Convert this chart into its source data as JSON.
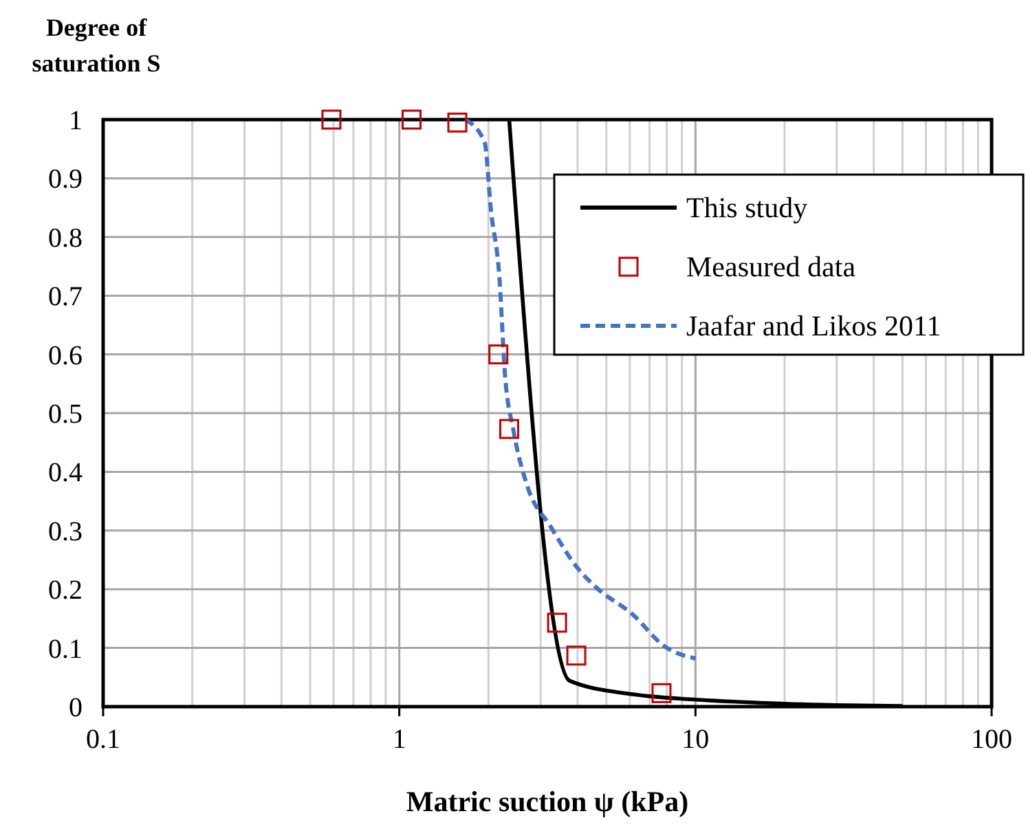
{
  "chart_data": {
    "type": "line",
    "xlabel": "Matric suction ψ (kPa)",
    "ylabel": "Degree of saturation S",
    "log": "x",
    "grid": true,
    "legend": "top right",
    "xlim": [
      0.1,
      100
    ],
    "xticks": [
      0.1,
      1,
      10,
      100
    ],
    "ylim": [
      0,
      1
    ],
    "yticks": [
      0,
      0.1,
      0.2,
      0.3,
      0.4,
      0.5,
      0.6,
      0.7,
      0.8,
      0.9,
      1
    ],
    "series": [
      {
        "name": "This study",
        "type": "line",
        "color": "#000000",
        "line_style": "solid",
        "marker": "none",
        "x": [
          2.35,
          3.76,
          6.14,
          10,
          19.9,
          50
        ],
        "values": [
          1,
          0.044,
          0.021,
          0.012,
          0.005,
          0.001
        ]
      },
      {
        "name": "Measured data",
        "type": "scatter",
        "color": "#c00000",
        "marker": "square",
        "x": [
          0.59,
          1.1,
          1.57,
          2.16,
          2.35,
          3.41,
          3.96,
          7.68
        ],
        "values": [
          1,
          1,
          0.995,
          0.6,
          0.473,
          0.143,
          0.087,
          0.023
        ]
      },
      {
        "name": "Jaafar and Likos 2011",
        "type": "line",
        "color": "#4472c4",
        "line_style": "dashed",
        "marker": "none",
        "x": [
          1.67,
          1.94,
          2.04,
          2.18,
          2.27,
          2.43,
          2.7,
          3.24,
          4.0,
          4.6,
          6.14,
          7.85,
          10
        ],
        "values": [
          1,
          0.962,
          0.845,
          0.728,
          0.571,
          0.47,
          0.377,
          0.307,
          0.236,
          0.204,
          0.157,
          0.103,
          0.082
        ]
      }
    ]
  }
}
